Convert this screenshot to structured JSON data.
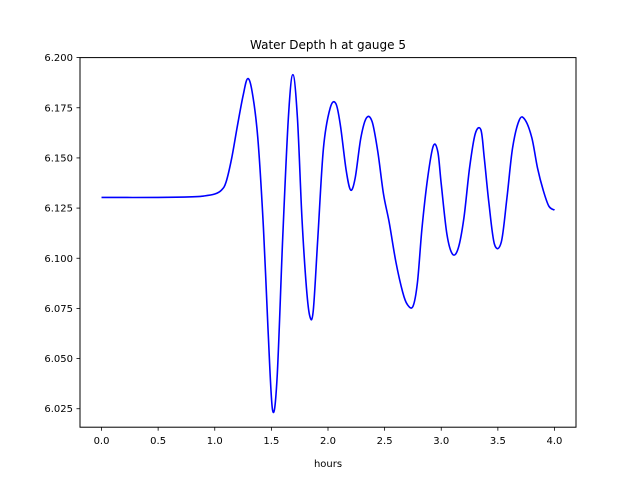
{
  "chart_data": {
    "type": "line",
    "title": "Water Depth h at gauge 5",
    "xlabel": "hours",
    "ylabel": "",
    "xlim": [
      -0.19,
      4.19
    ],
    "ylim": [
      6.0158,
      6.2
    ],
    "xticks": [
      0.0,
      0.5,
      1.0,
      1.5,
      2.0,
      2.5,
      3.0,
      3.5,
      4.0
    ],
    "xtick_labels": [
      "0.0",
      "0.5",
      "1.0",
      "1.5",
      "2.0",
      "2.5",
      "3.0",
      "3.5",
      "4.0"
    ],
    "yticks": [
      6.025,
      6.05,
      6.075,
      6.1,
      6.125,
      6.15,
      6.175,
      6.2
    ],
    "ytick_labels": [
      "6.025",
      "6.050",
      "6.075",
      "6.100",
      "6.125",
      "6.150",
      "6.175",
      "6.200"
    ],
    "grid": false,
    "legend": "none",
    "series": [
      {
        "color": "#0000ff",
        "x": [
          0.0,
          0.5,
          0.8,
          0.9,
          1.0,
          1.06,
          1.1,
          1.15,
          1.2,
          1.25,
          1.29,
          1.33,
          1.38,
          1.43,
          1.47,
          1.51,
          1.55,
          1.6,
          1.65,
          1.69,
          1.73,
          1.77,
          1.81,
          1.84,
          1.87,
          1.91,
          1.96,
          2.02,
          2.07,
          2.11,
          2.16,
          2.2,
          2.24,
          2.29,
          2.34,
          2.39,
          2.44,
          2.49,
          2.54,
          2.6,
          2.66,
          2.7,
          2.75,
          2.79,
          2.83,
          2.88,
          2.93,
          2.97,
          3.0,
          3.05,
          3.1,
          3.15,
          3.2,
          3.25,
          3.3,
          3.35,
          3.38,
          3.42,
          3.47,
          3.53,
          3.58,
          3.63,
          3.69,
          3.74,
          3.8,
          3.85,
          3.9,
          3.95,
          4.0
        ],
        "y": [
          6.1303,
          6.1303,
          6.1306,
          6.131,
          6.132,
          6.134,
          6.138,
          6.15,
          6.166,
          6.181,
          6.1895,
          6.183,
          6.16,
          6.115,
          6.065,
          6.0245,
          6.04,
          6.11,
          6.17,
          6.1915,
          6.17,
          6.12,
          6.085,
          6.071,
          6.074,
          6.11,
          6.155,
          6.175,
          6.177,
          6.166,
          6.144,
          6.134,
          6.14,
          6.16,
          6.17,
          6.168,
          6.153,
          6.132,
          6.118,
          6.098,
          6.083,
          6.077,
          6.076,
          6.088,
          6.115,
          6.14,
          6.156,
          6.153,
          6.137,
          6.112,
          6.102,
          6.105,
          6.12,
          6.145,
          6.162,
          6.164,
          6.15,
          6.128,
          6.107,
          6.108,
          6.13,
          6.155,
          6.169,
          6.169,
          6.16,
          6.145,
          6.134,
          6.126,
          6.124
        ]
      }
    ]
  }
}
